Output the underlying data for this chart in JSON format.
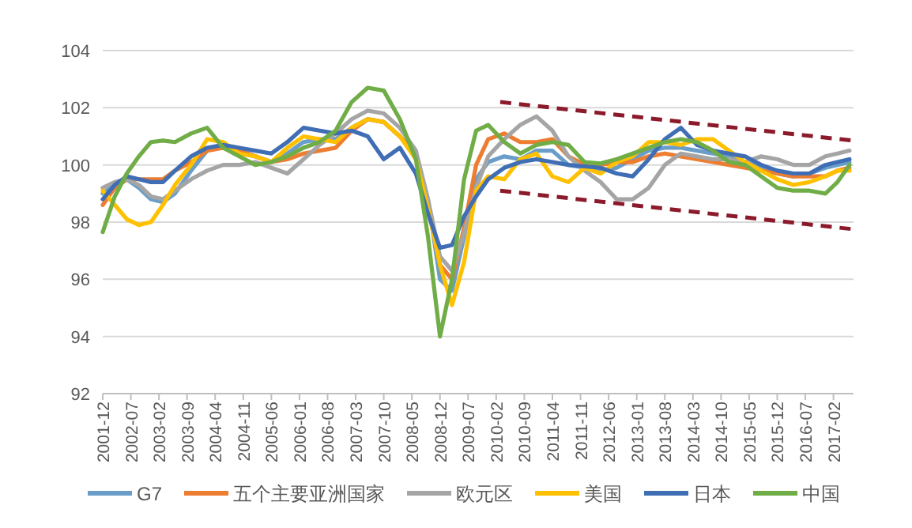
{
  "chart_data": {
    "type": "line",
    "x": [
      "2001-12",
      "2002-03",
      "2002-06",
      "2002-09",
      "2002-12",
      "2003-03",
      "2003-06",
      "2003-10",
      "2004-02",
      "2004-06",
      "2004-10",
      "2005-02",
      "2005-06",
      "2005-10",
      "2006-02",
      "2006-06",
      "2006-10",
      "2007-02",
      "2007-06",
      "2007-10",
      "2008-02",
      "2008-06",
      "2008-09",
      "2008-12",
      "2009-03",
      "2009-06",
      "2009-09",
      "2009-12",
      "2010-04",
      "2010-08",
      "2010-12",
      "2011-04",
      "2011-08",
      "2011-12",
      "2012-04",
      "2012-08",
      "2012-12",
      "2013-04",
      "2013-08",
      "2013-12",
      "2014-04",
      "2014-08",
      "2014-12",
      "2015-04",
      "2015-08",
      "2015-12",
      "2016-04",
      "2016-08",
      "2016-12",
      "2017-03",
      "2017-06"
    ],
    "series": [
      {
        "name": "G7",
        "color": "#6a9ec9",
        "values": [
          99.0,
          99.3,
          99.5,
          99.2,
          98.8,
          98.7,
          99.0,
          99.8,
          100.5,
          100.7,
          100.5,
          100.3,
          100.1,
          100.4,
          100.8,
          100.9,
          100.9,
          101.3,
          101.6,
          101.5,
          101.0,
          100.4,
          98.8,
          96.0,
          95.6,
          97.5,
          99.5,
          100.1,
          100.3,
          100.2,
          100.5,
          100.5,
          100.0,
          99.9,
          99.8,
          99.9,
          100.2,
          100.5,
          100.6,
          100.6,
          100.5,
          100.4,
          100.3,
          100.1,
          99.9,
          99.7,
          99.6,
          99.7,
          99.9,
          100.0,
          100.1
        ]
      },
      {
        "name": "五个主要亚洲国家",
        "color": "#ed7d31",
        "values": [
          98.6,
          99.2,
          99.5,
          99.5,
          99.5,
          99.5,
          99.8,
          100.1,
          100.5,
          100.6,
          100.5,
          100.3,
          100.1,
          100.2,
          100.4,
          100.5,
          100.6,
          101.2,
          101.6,
          101.5,
          101.0,
          100.4,
          98.6,
          96.5,
          96.0,
          97.8,
          100.0,
          100.9,
          101.1,
          100.8,
          100.8,
          100.9,
          100.3,
          100.0,
          100.0,
          100.1,
          100.1,
          100.3,
          100.4,
          100.3,
          100.2,
          100.1,
          100.0,
          99.9,
          99.8,
          99.7,
          99.6,
          99.6,
          99.6,
          99.8,
          99.9
        ]
      },
      {
        "name": "欧元区",
        "color": "#a5a5a5",
        "values": [
          99.2,
          99.4,
          99.5,
          99.3,
          98.9,
          98.8,
          99.1,
          99.5,
          99.8,
          100.0,
          100.0,
          100.1,
          99.9,
          99.7,
          100.2,
          100.7,
          101.1,
          101.6,
          101.9,
          101.8,
          101.3,
          100.5,
          98.8,
          96.8,
          96.3,
          97.6,
          99.2,
          100.3,
          100.9,
          101.4,
          101.7,
          101.2,
          100.3,
          99.8,
          99.4,
          98.8,
          98.8,
          99.2,
          100.0,
          100.4,
          100.3,
          100.2,
          100.2,
          100.1,
          100.3,
          100.2,
          100.0,
          100.0,
          100.3,
          100.4,
          100.5
        ]
      },
      {
        "name": "美国",
        "color": "#ffc000",
        "values": [
          99.1,
          98.6,
          98.1,
          97.9,
          98.0,
          98.6,
          99.3,
          100.0,
          100.9,
          100.8,
          100.4,
          100.3,
          100.1,
          100.6,
          101.0,
          100.9,
          100.8,
          101.3,
          101.6,
          101.5,
          101.0,
          100.2,
          98.5,
          96.5,
          95.1,
          96.6,
          99.1,
          99.6,
          99.5,
          100.2,
          100.4,
          99.6,
          99.4,
          99.9,
          99.7,
          100.1,
          100.3,
          100.8,
          100.8,
          100.7,
          100.9,
          100.9,
          100.5,
          100.1,
          99.8,
          99.5,
          99.3,
          99.4,
          99.6,
          99.8,
          99.8
        ]
      },
      {
        "name": "日本",
        "color": "#3f6eb5",
        "values": [
          98.8,
          99.3,
          99.6,
          99.5,
          99.4,
          99.4,
          99.8,
          100.3,
          100.6,
          100.7,
          100.6,
          100.5,
          100.4,
          100.8,
          101.3,
          101.2,
          101.1,
          101.2,
          101.0,
          100.2,
          100.6,
          99.7,
          98.3,
          97.1,
          97.2,
          98.2,
          98.9,
          99.5,
          99.9,
          100.1,
          100.2,
          100.1,
          100.0,
          99.95,
          99.9,
          99.7,
          99.6,
          100.2,
          100.9,
          101.3,
          100.7,
          100.5,
          100.4,
          100.3,
          100.0,
          99.8,
          99.7,
          99.7,
          100.0,
          100.1,
          100.2
        ]
      },
      {
        "name": "中国",
        "color": "#70ad47",
        "values": [
          97.65,
          98.9,
          99.7,
          100.3,
          100.8,
          100.85,
          100.8,
          101.1,
          101.3,
          100.6,
          100.3,
          100.0,
          100.1,
          100.3,
          100.6,
          100.8,
          101.2,
          102.2,
          102.7,
          102.6,
          101.6,
          100.2,
          97.5,
          94.0,
          96.0,
          99.5,
          101.2,
          101.4,
          100.8,
          100.4,
          100.7,
          100.8,
          100.7,
          100.1,
          100.05,
          100.2,
          100.4,
          100.6,
          100.8,
          100.9,
          100.8,
          100.5,
          100.1,
          100.0,
          99.6,
          99.2,
          99.1,
          99.1,
          99.0,
          99.4,
          100.0
        ]
      },
      {
        "type": "line",
        "color": "#8b1a2b",
        "line_style": "dashed",
        "x": [
          "2010-03",
          "2017-07"
        ],
        "values": [
          102.2,
          100.85
        ]
      },
      {
        "type": "line",
        "color": "#8b1a2b",
        "line_style": "dashed",
        "x": [
          "2010-03",
          "2017-07"
        ],
        "values": [
          99.1,
          97.75
        ]
      }
    ],
    "xlim": [
      "2001-12",
      "2017-07"
    ],
    "xticks": [
      "2001-12",
      "2002-07",
      "2003-02",
      "2003-09",
      "2004-04",
      "2004-11",
      "2005-06",
      "2006-01",
      "2006-08",
      "2007-03",
      "2007-10",
      "2008-05",
      "2008-12",
      "2009-07",
      "2010-02",
      "2010-09",
      "2011-04",
      "2011-11",
      "2012-06",
      "2013-01",
      "2013-08",
      "2014-03",
      "2014-10",
      "2015-05",
      "2015-12",
      "2016-07",
      "2017-02"
    ],
    "ylim": [
      92,
      104
    ],
    "yticks": [
      92,
      94,
      96,
      98,
      100,
      102,
      104
    ],
    "grid": "y",
    "legend": "bottom",
    "marker": "none",
    "line_style": "solid"
  }
}
